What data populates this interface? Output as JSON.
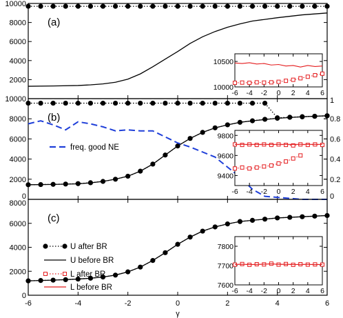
{
  "chart_data": [
    {
      "panel": "(a)",
      "type": "line",
      "xlabel": "",
      "xlim": [
        -6,
        6
      ],
      "ylim": [
        0,
        10000
      ],
      "y_ticks": [
        2000,
        4000,
        6000,
        8000,
        10000
      ],
      "x_ticks": [
        -6,
        -4,
        -2,
        0,
        2,
        4,
        6
      ],
      "series": [
        {
          "name": "",
          "style": "dotted-circles",
          "x": [
            -6,
            -5.5,
            -5,
            -4.5,
            -4,
            -3.5,
            -3,
            -2.5,
            -2,
            -1.5,
            -1,
            -0.5,
            0,
            0.5,
            1,
            1.5,
            2,
            2.5,
            3,
            3.5,
            4,
            4.5,
            5,
            5.5,
            6
          ],
          "y": [
            9700,
            9700,
            9700,
            9700,
            9700,
            9700,
            9700,
            9700,
            9700,
            9700,
            9700,
            9700,
            9700,
            9700,
            9700,
            9700,
            9700,
            9700,
            9700,
            9700,
            9700,
            9700,
            9700,
            9700,
            9700
          ]
        },
        {
          "name": "",
          "style": "solid",
          "x": [
            -6,
            -5,
            -4,
            -3.5,
            -3,
            -2.5,
            -2,
            -1.5,
            -1,
            -0.5,
            0,
            0.5,
            1,
            1.5,
            2,
            2.5,
            3,
            4,
            5,
            6
          ],
          "y": [
            1300,
            1330,
            1380,
            1450,
            1550,
            1720,
            2050,
            2600,
            3350,
            4150,
            4950,
            5800,
            6500,
            7050,
            7500,
            7850,
            8150,
            8500,
            8800,
            9000
          ]
        }
      ],
      "inset": {
        "xlim": [
          -6,
          6
        ],
        "ylim": [
          10000,
          10650
        ],
        "y_ticks": [
          10000,
          10500
        ],
        "x_ticks": [
          -6,
          -4,
          -2,
          0,
          2,
          4,
          6
        ],
        "series": [
          {
            "name": "",
            "style": "solid-red",
            "x": [
              -6,
              -5,
              -4,
              -3,
              -2,
              -1,
              0,
              1,
              2,
              3,
              4,
              5,
              6
            ],
            "y": [
              10470,
              10460,
              10475,
              10450,
              10460,
              10430,
              10440,
              10410,
              10420,
              10390,
              10420,
              10400,
              10410
            ]
          },
          {
            "name": "",
            "style": "dotted-red-squares",
            "x": [
              -6,
              -5,
              -4,
              -3,
              -2,
              -1,
              0,
              1,
              2,
              3,
              4,
              5,
              6
            ],
            "y": [
              10080,
              10085,
              10080,
              10090,
              10085,
              10090,
              10100,
              10120,
              10140,
              10170,
              10200,
              10230,
              10260
            ]
          }
        ]
      }
    },
    {
      "panel": "(b)",
      "type": "line",
      "xlim": [
        -6,
        6
      ],
      "ylim": [
        0,
        10000
      ],
      "y_ticks": [
        0,
        2000,
        4000,
        6000,
        8000,
        10000
      ],
      "y2lim": [
        0,
        1
      ],
      "y2_ticks": [
        0,
        0.2,
        0.4,
        0.6,
        0.8,
        1
      ],
      "x_ticks": [
        -6,
        -4,
        -2,
        0,
        2,
        4,
        6
      ],
      "legend": [
        {
          "label": "freq. good NE",
          "style": "dashed-blue"
        }
      ],
      "series": [
        {
          "name": "",
          "style": "dotted-circles",
          "x": [
            -6,
            -5.5,
            -5,
            -4.5,
            -4,
            -3.5,
            -3,
            -2.5,
            -2,
            -1.5,
            -1,
            -0.5,
            0,
            0.5,
            1,
            1.5,
            2,
            2.5,
            3,
            3.5,
            4,
            4.5,
            5,
            5.5,
            6
          ],
          "y": [
            9550,
            9550,
            9550,
            9550,
            9550,
            9550,
            9550,
            9550,
            9550,
            9550,
            9550,
            9550,
            9550,
            9550,
            9550,
            9550,
            9550,
            9550,
            9550,
            9550,
            8100,
            8150,
            8200,
            8250,
            8300
          ]
        },
        {
          "name": "",
          "style": "dotted-circles",
          "x": [
            -6,
            -5.5,
            -5,
            -4.5,
            -4,
            -3.5,
            -3,
            -2.5,
            -2,
            -1.5,
            -1,
            -0.5,
            0,
            0.5,
            1,
            1.5,
            2,
            2.5,
            3,
            3.5,
            4,
            4.5,
            5,
            5.5,
            6
          ],
          "y": [
            1450,
            1470,
            1490,
            1520,
            1560,
            1650,
            1780,
            2000,
            2300,
            2800,
            3500,
            4400,
            5300,
            6050,
            6650,
            7100,
            7400,
            7650,
            7800,
            7950,
            8050,
            8150,
            8200,
            8250,
            8300
          ]
        },
        {
          "name": "",
          "style": "solid",
          "x": [
            -6,
            -5,
            -4,
            -3.5,
            -3,
            -2.5,
            -2,
            -1.5,
            -1,
            -0.5,
            0,
            0.5,
            1,
            1.5,
            2,
            2.5,
            3,
            4,
            5,
            6
          ],
          "y": [
            1450,
            1480,
            1540,
            1640,
            1780,
            2000,
            2300,
            2800,
            3500,
            4400,
            5300,
            6050,
            6650,
            7100,
            7400,
            7650,
            7800,
            8050,
            8200,
            8300
          ]
        },
        {
          "name": "freq. good NE",
          "style": "dashed-blue",
          "axis": "right",
          "x": [
            -6,
            -5.5,
            -5,
            -4.5,
            -4,
            -3.5,
            -3,
            -2.5,
            -2,
            -1.5,
            -1,
            -0.5,
            0,
            0.5,
            1,
            1.5,
            2,
            2.5,
            3,
            3.5,
            4,
            4.5,
            5,
            5.5,
            6
          ],
          "y": [
            0.75,
            0.78,
            0.74,
            0.69,
            0.77,
            0.75,
            0.72,
            0.68,
            0.69,
            0.68,
            0.68,
            0.62,
            0.56,
            0.52,
            0.47,
            0.42,
            0.32,
            0.22,
            0.1,
            0.03,
            0.02,
            0.01,
            0.0,
            0.0,
            0.0
          ]
        }
      ],
      "inset": {
        "xlim": [
          -6,
          6
        ],
        "ylim": [
          9300,
          9850
        ],
        "y_ticks": [
          9400,
          9600,
          9800
        ],
        "x_ticks": [
          -6,
          -4,
          -2,
          0,
          2,
          4,
          6
        ],
        "series": [
          {
            "name": "",
            "style": "dotted-red-squares",
            "x": [
              -6,
              -5,
              -4,
              -3,
              -2,
              -1,
              0,
              1,
              2,
              3,
              4,
              5,
              6
            ],
            "y": [
              9710,
              9705,
              9710,
              9705,
              9710,
              9705,
              9710,
              9705,
              9700,
              9710,
              9705,
              9710,
              9705
            ]
          },
          {
            "name": "",
            "style": "dotted-red-squares",
            "x": [
              -6,
              -5,
              -4,
              -3,
              -2,
              -1,
              0,
              1,
              2,
              3
            ],
            "y": [
              9470,
              9480,
              9470,
              9480,
              9490,
              9500,
              9520,
              9540,
              9570,
              9600
            ]
          },
          {
            "name": "",
            "style": "solid-red",
            "x": [
              -6,
              6
            ],
            "y": [
              9710,
              9710
            ]
          }
        ]
      }
    },
    {
      "panel": "(c)",
      "type": "line",
      "xlabel": "γ",
      "xlim": [
        -6,
        6
      ],
      "ylim": [
        0,
        8000
      ],
      "y_ticks": [
        0,
        2000,
        4000,
        6000,
        8000
      ],
      "x_ticks": [
        -6,
        -4,
        -2,
        0,
        2,
        4,
        6
      ],
      "legend": [
        {
          "label": "U after BR",
          "style": "dotted-circles"
        },
        {
          "label": "U before BR",
          "style": "solid"
        },
        {
          "label": "L after BR",
          "style": "dotted-red-squares"
        },
        {
          "label": "L before BR",
          "style": "solid-red"
        }
      ],
      "series": [
        {
          "name": "U after BR",
          "style": "dotted-circles",
          "x": [
            -6,
            -5.5,
            -5,
            -4.5,
            -4,
            -3.5,
            -3,
            -2.5,
            -2,
            -1.5,
            -1,
            -0.5,
            0,
            0.5,
            1,
            1.5,
            2,
            2.5,
            3,
            3.5,
            4,
            4.5,
            5,
            5.5,
            6
          ],
          "y": [
            1200,
            1230,
            1260,
            1300,
            1350,
            1420,
            1520,
            1680,
            1950,
            2350,
            2900,
            3550,
            4250,
            4850,
            5350,
            5700,
            5950,
            6150,
            6250,
            6350,
            6450,
            6500,
            6550,
            6600,
            6650
          ]
        },
        {
          "name": "U before BR",
          "style": "solid",
          "x": [
            -6,
            -5,
            -4,
            -3.5,
            -3,
            -2.5,
            -2,
            -1.5,
            -1,
            -0.5,
            0,
            0.5,
            1,
            1.5,
            2,
            2.5,
            3,
            4,
            5,
            6
          ],
          "y": [
            1200,
            1260,
            1350,
            1420,
            1520,
            1680,
            1950,
            2350,
            2900,
            3550,
            4250,
            4850,
            5350,
            5700,
            5950,
            6150,
            6250,
            6450,
            6550,
            6650
          ]
        }
      ],
      "inset": {
        "xlim": [
          -6,
          6
        ],
        "ylim": [
          7600,
          7850
        ],
        "y_ticks": [
          7600,
          7700,
          7800
        ],
        "x_ticks": [
          -6,
          -4,
          -2,
          0,
          2,
          4,
          6
        ],
        "series": [
          {
            "name": "L after BR",
            "style": "dotted-red-squares",
            "x": [
              -6,
              -5,
              -4,
              -3,
              -2,
              -1,
              0,
              1,
              2,
              3,
              4,
              5,
              6
            ],
            "y": [
              7705,
              7708,
              7704,
              7707,
              7706,
              7710,
              7705,
              7708,
              7704,
              7707,
              7705,
              7706,
              7705
            ]
          },
          {
            "name": "L before BR",
            "style": "solid-red",
            "x": [
              -6,
              -5,
              -4,
              -3,
              -2,
              -1,
              0,
              1,
              2,
              3,
              4,
              5,
              6
            ],
            "y": [
              7706,
              7707,
              7705,
              7706,
              7707,
              7709,
              7706,
              7707,
              7705,
              7706,
              7706,
              7705,
              7706
            ]
          }
        ]
      }
    }
  ],
  "colors": {
    "black": "#000000",
    "red": "#e41a1c",
    "blue": "#1f3fd9"
  }
}
